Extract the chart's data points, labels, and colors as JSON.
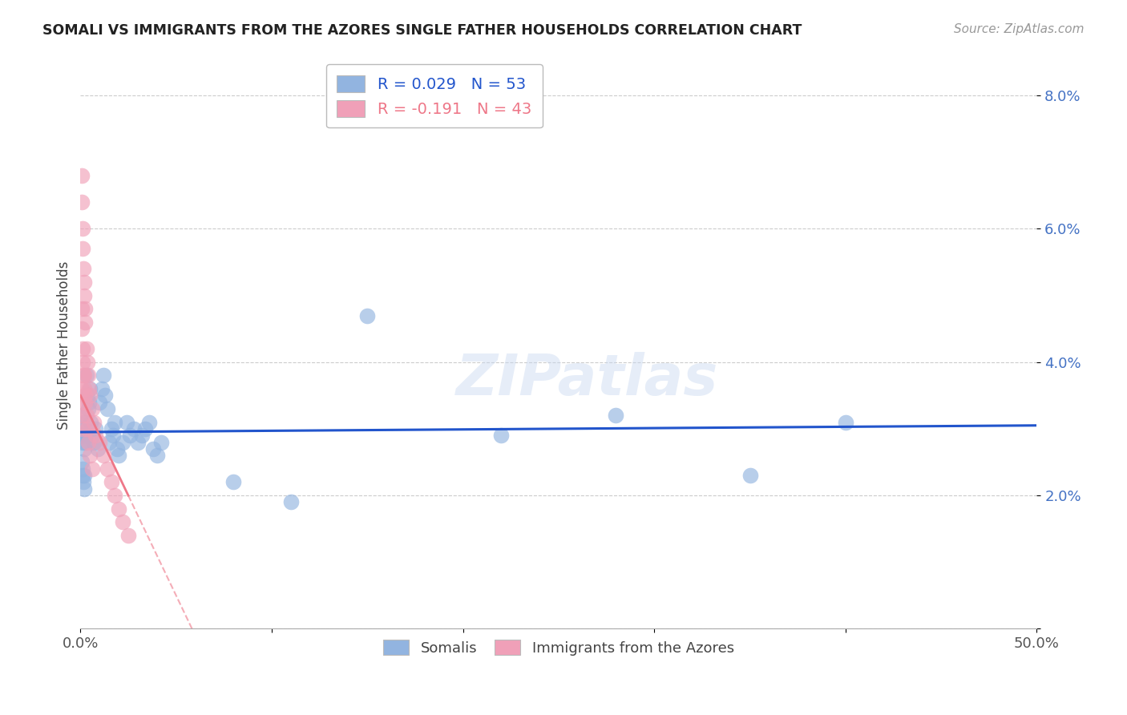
{
  "title": "SOMALI VS IMMIGRANTS FROM THE AZORES SINGLE FATHER HOUSEHOLDS CORRELATION CHART",
  "source": "Source: ZipAtlas.com",
  "ylabel": "Single Father Households",
  "xmin": 0.0,
  "xmax": 0.5,
  "ymin": 0.0,
  "ymax": 0.085,
  "ytick_vals": [
    0.0,
    0.02,
    0.04,
    0.06,
    0.08
  ],
  "ytick_labels": [
    "",
    "2.0%",
    "4.0%",
    "6.0%",
    "8.0%"
  ],
  "xtick_vals": [
    0.0,
    0.1,
    0.2,
    0.3,
    0.4,
    0.5
  ],
  "xtick_labels": [
    "0.0%",
    "",
    "",
    "",
    "",
    "50.0%"
  ],
  "legend_label_blue": "R = 0.029   N = 53",
  "legend_label_pink": "R = -0.191   N = 43",
  "blue_color": "#92b4e0",
  "pink_color": "#f0a0b8",
  "trendline_blue": "#2255cc",
  "trendline_pink": "#ee7788",
  "watermark_text": "ZIPatlas",
  "legend_bottom_blue": "Somalis",
  "legend_bottom_pink": "Immigrants from the Azores",
  "somali_x": [
    0.0008,
    0.001,
    0.0012,
    0.0015,
    0.0018,
    0.002,
    0.0022,
    0.0025,
    0.0008,
    0.001,
    0.0012,
    0.0015,
    0.0018,
    0.002,
    0.003,
    0.0035,
    0.004,
    0.0045,
    0.005,
    0.0055,
    0.006,
    0.007,
    0.008,
    0.009,
    0.01,
    0.011,
    0.012,
    0.013,
    0.014,
    0.015,
    0.016,
    0.017,
    0.018,
    0.019,
    0.02,
    0.022,
    0.024,
    0.026,
    0.028,
    0.03,
    0.032,
    0.034,
    0.036,
    0.038,
    0.04,
    0.042,
    0.08,
    0.11,
    0.15,
    0.22,
    0.28,
    0.35,
    0.4
  ],
  "somali_y": [
    0.032,
    0.029,
    0.028,
    0.03,
    0.031,
    0.027,
    0.029,
    0.028,
    0.025,
    0.023,
    0.024,
    0.022,
    0.021,
    0.023,
    0.038,
    0.035,
    0.033,
    0.034,
    0.036,
    0.031,
    0.029,
    0.028,
    0.03,
    0.027,
    0.034,
    0.036,
    0.038,
    0.035,
    0.033,
    0.028,
    0.03,
    0.029,
    0.031,
    0.027,
    0.026,
    0.028,
    0.031,
    0.029,
    0.03,
    0.028,
    0.029,
    0.03,
    0.031,
    0.027,
    0.026,
    0.028,
    0.022,
    0.019,
    0.047,
    0.029,
    0.032,
    0.023,
    0.031
  ],
  "azores_x": [
    0.0005,
    0.0008,
    0.001,
    0.0012,
    0.0015,
    0.0005,
    0.0008,
    0.001,
    0.0012,
    0.0015,
    0.0005,
    0.0008,
    0.001,
    0.0012,
    0.0018,
    0.002,
    0.0022,
    0.0025,
    0.0018,
    0.002,
    0.0022,
    0.0025,
    0.003,
    0.0035,
    0.004,
    0.0045,
    0.003,
    0.0035,
    0.004,
    0.005,
    0.006,
    0.007,
    0.008,
    0.005,
    0.006,
    0.01,
    0.012,
    0.014,
    0.016,
    0.018,
    0.02,
    0.022,
    0.025
  ],
  "azores_y": [
    0.068,
    0.064,
    0.06,
    0.057,
    0.054,
    0.048,
    0.045,
    0.042,
    0.04,
    0.038,
    0.036,
    0.034,
    0.032,
    0.03,
    0.052,
    0.05,
    0.048,
    0.046,
    0.038,
    0.036,
    0.035,
    0.034,
    0.042,
    0.04,
    0.038,
    0.036,
    0.032,
    0.03,
    0.028,
    0.035,
    0.033,
    0.031,
    0.029,
    0.026,
    0.024,
    0.028,
    0.026,
    0.024,
    0.022,
    0.02,
    0.018,
    0.016,
    0.014
  ]
}
